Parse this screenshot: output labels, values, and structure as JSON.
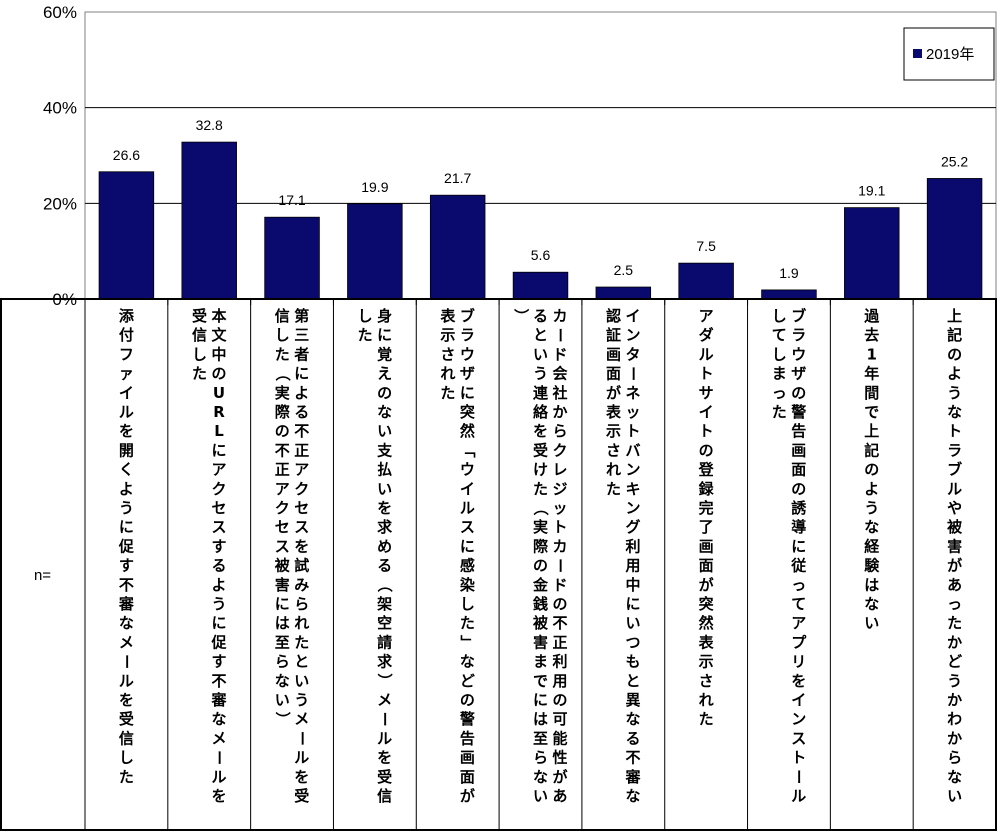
{
  "chart_data": {
    "type": "bar",
    "categories": [
      "添付ファイルを開くように促す不審なメールを受信した",
      "本文中のURLにアクセスするように促す不審なメールを受信した",
      "第三者による不正アクセスを試みられたというメールを受信した（実際の不正アクセス被害には至らない）",
      "身に覚えのない支払いを求める（架空請求）メールを受信した",
      "ブラウザに突然「ウイルスに感染した」などの警告画面が表示された",
      "カード会社からクレジットカードの不正利用の可能性があるという連絡を受けた（実際の金銭被害までには至らない）",
      "インターネットバンキング利用中にいつもと異なる不審な認証画面が表示された",
      "アダルトサイトの登録完了画面が突然表示された",
      "ブラウザの警告画面の誘導に従ってアプリをインストールしてしまった",
      "過去1年間で上記のような経験はない",
      "上記のようなトラブルや被害があったかどうかわからない"
    ],
    "series": [
      {
        "name": "2019年",
        "values": [
          26.6,
          32.8,
          17.1,
          19.9,
          21.7,
          5.6,
          2.5,
          7.5,
          1.9,
          19.1,
          25.2
        ]
      }
    ],
    "data_labels": [
      "26.6",
      "32.8",
      "17.1",
      "19.9",
      "21.7",
      "5.6",
      "2.5",
      "7.5",
      "1.9",
      "19.1",
      "25.2"
    ],
    "y_ticks": [
      "0%",
      "20%",
      "40%",
      "60%"
    ],
    "ylim": [
      0,
      60
    ],
    "grid": true,
    "legend_position": "top-right",
    "n_label": "n=",
    "bar_color": "#0a0a6e",
    "title": "",
    "xlabel": "",
    "ylabel": ""
  }
}
